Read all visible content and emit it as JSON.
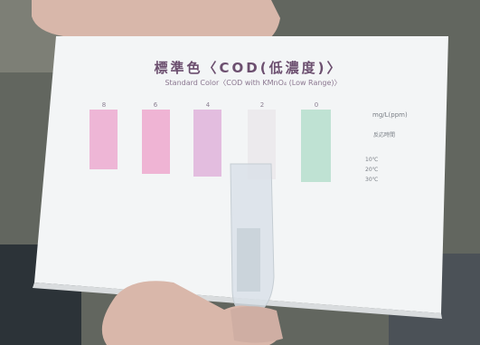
{
  "card": {
    "title": "標準色〈COD(低濃度)〉",
    "subtitle": "Standard Color〈COD with KMnO₄ (Low Range)〉",
    "unit": "mg/L(ppm)",
    "time_title": "反応時間",
    "chips": [
      {
        "label": "8",
        "color": "#eeb6d6"
      },
      {
        "label": "6",
        "color": "#efb4d4"
      },
      {
        "label": "4",
        "color": "#e3bddf"
      },
      {
        "label": "2",
        "color": "#eceaed"
      },
      {
        "label": "0",
        "color": "#bfe2d3"
      }
    ],
    "times": [
      "10℃",
      "20℃",
      "30℃"
    ]
  }
}
